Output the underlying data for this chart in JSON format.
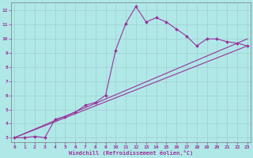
{
  "xlabel": "Windchill (Refroidissement éolien,°C)",
  "bg_color": "#b0e8e8",
  "grid_color": "#9fcfcf",
  "line_color": "#993399",
  "x_ticks": [
    0,
    1,
    2,
    3,
    4,
    5,
    6,
    7,
    8,
    9,
    10,
    11,
    12,
    13,
    14,
    15,
    16,
    17,
    18,
    19,
    20,
    21,
    22,
    23
  ],
  "y_ticks": [
    3,
    4,
    5,
    6,
    7,
    8,
    9,
    10,
    11,
    12
  ],
  "ylim": [
    2.7,
    12.6
  ],
  "xlim": [
    -0.3,
    23.3
  ],
  "main_line_x": [
    0,
    1,
    2,
    3,
    4,
    5,
    6,
    7,
    8,
    9,
    10,
    11,
    12,
    13,
    14,
    15,
    16,
    17,
    18,
    19,
    20,
    21,
    22,
    23
  ],
  "main_line_y": [
    3.0,
    3.0,
    3.1,
    3.0,
    4.3,
    4.5,
    4.8,
    5.3,
    5.5,
    6.0,
    9.2,
    11.1,
    12.3,
    11.2,
    11.5,
    11.2,
    10.7,
    10.2,
    9.5,
    10.0,
    10.0,
    9.8,
    9.7,
    9.5
  ],
  "line2_x": [
    0,
    23
  ],
  "line2_y": [
    3.0,
    9.5
  ],
  "line3_x": [
    0,
    23
  ],
  "line3_y": [
    3.0,
    10.0
  ]
}
